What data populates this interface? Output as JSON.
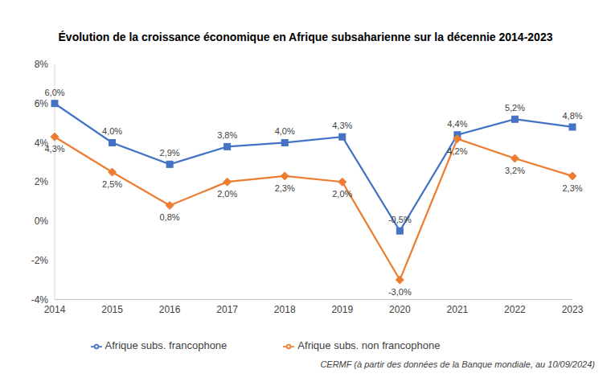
{
  "chart_data": {
    "type": "line",
    "title": "Évolution de la croissance économique en Afrique subsaharienne sur la décennie 2014-2023",
    "categories": [
      "2014",
      "2015",
      "2016",
      "2017",
      "2018",
      "2019",
      "2020",
      "2021",
      "2022",
      "2023"
    ],
    "series": [
      {
        "name": "Afrique subs. francophone",
        "color": "#4472C4",
        "marker": "square",
        "values": [
          6.0,
          4.0,
          2.9,
          3.8,
          4.0,
          4.3,
          -0.5,
          4.4,
          5.2,
          4.8
        ],
        "value_labels": [
          "6,0%",
          "4,0%",
          "2,9%",
          "3,8%",
          "4,0%",
          "4,3%",
          "-0,5%",
          "4,4%",
          "5,2%",
          "4,8%"
        ]
      },
      {
        "name": "Afrique subs. non francophone",
        "color": "#ED7D31",
        "marker": "diamond",
        "values": [
          4.3,
          2.5,
          0.8,
          2.0,
          2.3,
          2.0,
          -3.0,
          4.2,
          3.2,
          2.3
        ],
        "value_labels": [
          "4,3%",
          "2,5%",
          "0,8%",
          "2,0%",
          "2,3%",
          "2,0%",
          "-3,0%",
          "4,2%",
          "3,2%",
          "2,3%"
        ]
      }
    ],
    "ylim": [
      -4,
      8
    ],
    "yticks": [
      {
        "value": -4,
        "label": "-4%"
      },
      {
        "value": -2,
        "label": "-2%"
      },
      {
        "value": 0,
        "label": "0%"
      },
      {
        "value": 2,
        "label": "2%"
      },
      {
        "value": 4,
        "label": "4%"
      },
      {
        "value": 6,
        "label": "6%"
      },
      {
        "value": 8,
        "label": "8%"
      }
    ],
    "grid": false,
    "legend": "bottom",
    "data_labels": true,
    "annotations": [
      "CERMF (à partir des données de la Banque mondiale, au 10/09/2024)"
    ]
  }
}
